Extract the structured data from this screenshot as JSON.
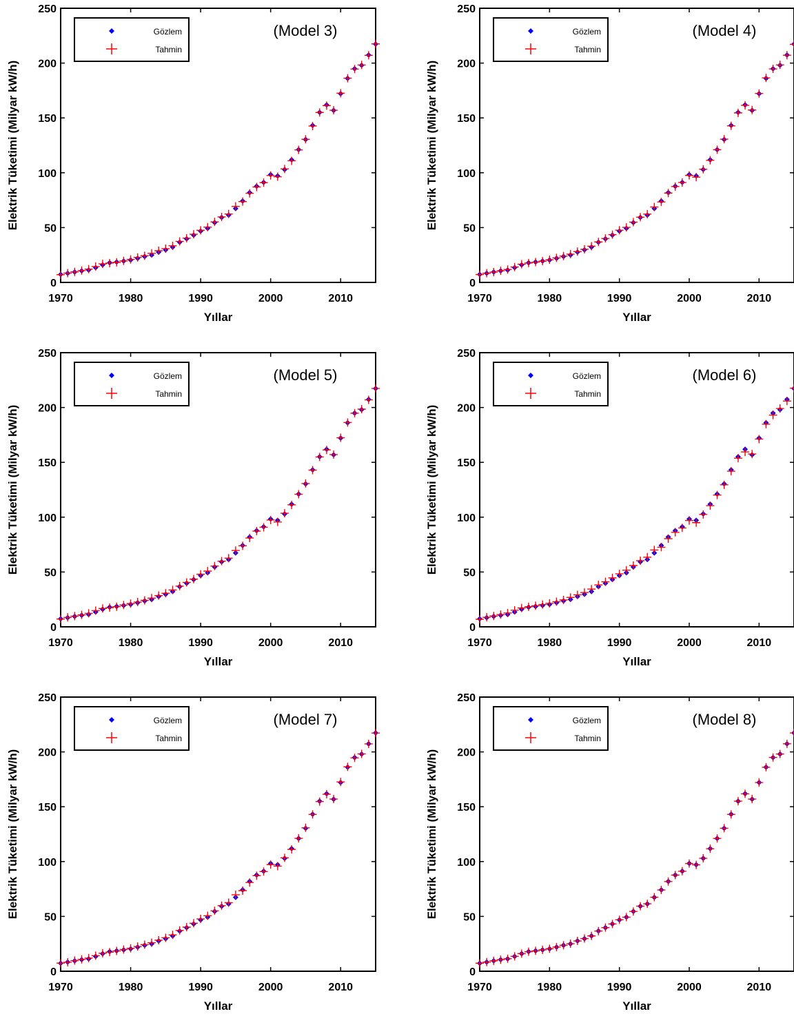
{
  "figure": {
    "xlabel": "Yıllar",
    "ylabel": "Elektrik Tüketimi (Milyar kW/h)"
  },
  "legend": {
    "observed": "Gözlem",
    "predicted": "Tahmin"
  },
  "colors": {
    "observed": "#0000ff",
    "predicted": "#ff0000",
    "axis": "#000000"
  },
  "chart_data": [
    {
      "type": "scatter",
      "annotation": "(Model 3)",
      "xlabel": "Yıllar",
      "ylabel": "Elektrik Tüketimi (Milyar kW/h)",
      "xlim": [
        1970,
        2015
      ],
      "ylim": [
        0,
        250
      ],
      "xticks": [
        1970,
        1980,
        1990,
        2000,
        2010
      ],
      "yticks": [
        0,
        50,
        100,
        150,
        200,
        250
      ],
      "legend_position": "top-left",
      "x": [
        1970,
        1971,
        1972,
        1973,
        1974,
        1975,
        1976,
        1977,
        1978,
        1979,
        1980,
        1981,
        1982,
        1983,
        1984,
        1985,
        1986,
        1987,
        1988,
        1989,
        1990,
        1991,
        1992,
        1993,
        1994,
        1995,
        1996,
        1997,
        1998,
        1999,
        2000,
        2001,
        2002,
        2003,
        2004,
        2005,
        2006,
        2007,
        2008,
        2009,
        2010,
        2011,
        2012,
        2013,
        2014,
        2015
      ],
      "series": [
        {
          "name": "Gözlem",
          "values": [
            7.3,
            8.3,
            9.5,
            10.5,
            11.3,
            13.5,
            16.0,
            17.9,
            18.6,
            19.5,
            20.4,
            22.0,
            23.6,
            25.0,
            27.6,
            29.7,
            32.2,
            36.7,
            39.7,
            43.1,
            46.8,
            49.3,
            54.6,
            59.3,
            61.4,
            67.4,
            74.2,
            81.9,
            87.7,
            91.2,
            98.3,
            97.1,
            102.9,
            111.8,
            121.1,
            130.3,
            143.1,
            155.1,
            161.9,
            156.9,
            172.1,
            186.1,
            194.9,
            198.0,
            207.4,
            217.3
          ]
        },
        {
          "name": "Tahmin",
          "values": [
            7.0,
            8.5,
            9.6,
            10.8,
            12.1,
            14.5,
            16.9,
            17.6,
            18.3,
            19.6,
            21.0,
            22.8,
            24.3,
            26.5,
            28.9,
            30.8,
            33.4,
            37.4,
            40.3,
            43.9,
            47.5,
            50.4,
            55.2,
            59.7,
            62.4,
            69.3,
            73.7,
            81.3,
            87.0,
            91.0,
            97.5,
            96.4,
            103.5,
            110.9,
            120.8,
            130.5,
            142.6,
            155.0,
            161.2,
            157.0,
            172.5,
            186.2,
            194.6,
            198.3,
            207.1,
            217.5
          ]
        }
      ]
    },
    {
      "type": "scatter",
      "annotation": "(Model 4)",
      "xlabel": "Yıllar",
      "ylabel": "Elektrik Tüketimi (Milyar kW/h)",
      "xlim": [
        1970,
        2015
      ],
      "ylim": [
        0,
        250
      ],
      "xticks": [
        1970,
        1980,
        1990,
        2000,
        2010
      ],
      "yticks": [
        0,
        50,
        100,
        150,
        200,
        250
      ],
      "legend_position": "top-left",
      "x": [
        1970,
        1971,
        1972,
        1973,
        1974,
        1975,
        1976,
        1977,
        1978,
        1979,
        1980,
        1981,
        1982,
        1983,
        1984,
        1985,
        1986,
        1987,
        1988,
        1989,
        1990,
        1991,
        1992,
        1993,
        1994,
        1995,
        1996,
        1997,
        1998,
        1999,
        2000,
        2001,
        2002,
        2003,
        2004,
        2005,
        2006,
        2007,
        2008,
        2009,
        2010,
        2011,
        2012,
        2013,
        2014,
        2015
      ],
      "series": [
        {
          "name": "Gözlem",
          "values": [
            7.3,
            8.3,
            9.5,
            10.5,
            11.3,
            13.5,
            16.0,
            17.9,
            18.6,
            19.5,
            20.4,
            22.0,
            23.6,
            25.0,
            27.6,
            29.7,
            32.2,
            36.7,
            39.7,
            43.1,
            46.8,
            49.3,
            54.6,
            59.3,
            61.4,
            67.4,
            74.2,
            81.9,
            87.7,
            91.2,
            98.3,
            97.1,
            102.9,
            111.8,
            121.1,
            130.3,
            143.1,
            155.1,
            161.9,
            156.9,
            172.1,
            186.1,
            194.9,
            198.0,
            207.4,
            217.3
          ]
        },
        {
          "name": "Tahmin",
          "values": [
            7.2,
            8.4,
            9.4,
            10.6,
            11.8,
            14.0,
            16.6,
            17.7,
            18.5,
            19.4,
            20.7,
            22.4,
            24.0,
            25.8,
            28.1,
            30.2,
            33.0,
            36.9,
            40.1,
            43.6,
            47.6,
            50.2,
            55.0,
            59.5,
            62.3,
            68.8,
            73.4,
            81.5,
            87.4,
            91.1,
            97.6,
            96.0,
            103.2,
            111.4,
            121.0,
            130.6,
            142.8,
            154.6,
            161.5,
            157.2,
            172.3,
            186.5,
            194.7,
            198.4,
            207.2,
            217.1
          ]
        }
      ]
    },
    {
      "type": "scatter",
      "annotation": "(Model 5)",
      "xlabel": "Yıllar",
      "ylabel": "Elektrik Tüketimi (Milyar kW/h)",
      "xlim": [
        1970,
        2015
      ],
      "ylim": [
        0,
        250
      ],
      "xticks": [
        1970,
        1980,
        1990,
        2000,
        2010
      ],
      "yticks": [
        0,
        50,
        100,
        150,
        200,
        250
      ],
      "legend_position": "top-left",
      "x": [
        1970,
        1971,
        1972,
        1973,
        1974,
        1975,
        1976,
        1977,
        1978,
        1979,
        1980,
        1981,
        1982,
        1983,
        1984,
        1985,
        1986,
        1987,
        1988,
        1989,
        1990,
        1991,
        1992,
        1993,
        1994,
        1995,
        1996,
        1997,
        1998,
        1999,
        2000,
        2001,
        2002,
        2003,
        2004,
        2005,
        2006,
        2007,
        2008,
        2009,
        2010,
        2011,
        2012,
        2013,
        2014,
        2015
      ],
      "series": [
        {
          "name": "Gözlem",
          "values": [
            7.3,
            8.3,
            9.5,
            10.5,
            11.3,
            13.5,
            16.0,
            17.9,
            18.6,
            19.5,
            20.4,
            22.0,
            23.6,
            25.0,
            27.6,
            29.7,
            32.2,
            36.7,
            39.7,
            43.1,
            46.8,
            49.3,
            54.6,
            59.3,
            61.4,
            67.4,
            74.2,
            81.9,
            87.7,
            91.2,
            98.3,
            97.1,
            102.9,
            111.8,
            121.1,
            130.3,
            143.1,
            155.1,
            161.9,
            156.9,
            172.1,
            186.1,
            194.9,
            198.0,
            207.4,
            217.3
          ]
        },
        {
          "name": "Tahmin",
          "values": [
            7.1,
            8.6,
            9.8,
            10.9,
            12.3,
            14.8,
            16.7,
            17.5,
            18.4,
            19.9,
            21.2,
            22.6,
            24.1,
            26.2,
            28.5,
            30.6,
            33.6,
            37.1,
            40.5,
            43.5,
            47.9,
            50.8,
            55.4,
            59.9,
            62.6,
            69.6,
            73.9,
            81.0,
            87.3,
            90.8,
            97.4,
            95.6,
            103.6,
            111.2,
            120.9,
            130.7,
            142.9,
            154.9,
            161.3,
            157.1,
            172.4,
            186.3,
            194.8,
            198.5,
            207.0,
            217.4
          ]
        }
      ]
    },
    {
      "type": "scatter",
      "annotation": "(Model 6)",
      "xlabel": "Yıllar",
      "ylabel": "Elektrik Tüketimi (Milyar kW/h)",
      "xlim": [
        1970,
        2015
      ],
      "ylim": [
        0,
        250
      ],
      "xticks": [
        1970,
        1980,
        1990,
        2000,
        2010
      ],
      "yticks": [
        0,
        50,
        100,
        150,
        200,
        250
      ],
      "legend_position": "top-left",
      "x": [
        1970,
        1971,
        1972,
        1973,
        1974,
        1975,
        1976,
        1977,
        1978,
        1979,
        1980,
        1981,
        1982,
        1983,
        1984,
        1985,
        1986,
        1987,
        1988,
        1989,
        1990,
        1991,
        1992,
        1993,
        1994,
        1995,
        1996,
        1997,
        1998,
        1999,
        2000,
        2001,
        2002,
        2003,
        2004,
        2005,
        2006,
        2007,
        2008,
        2009,
        2010,
        2011,
        2012,
        2013,
        2014,
        2015
      ],
      "series": [
        {
          "name": "Gözlem",
          "values": [
            7.3,
            8.3,
            9.5,
            10.5,
            11.3,
            13.5,
            16.0,
            17.9,
            18.6,
            19.5,
            20.4,
            22.0,
            23.6,
            25.0,
            27.6,
            29.7,
            32.2,
            36.7,
            39.7,
            43.1,
            46.8,
            49.3,
            54.6,
            59.3,
            61.4,
            67.4,
            74.2,
            81.9,
            87.7,
            91.2,
            98.3,
            97.1,
            102.9,
            111.8,
            121.1,
            130.3,
            143.1,
            155.1,
            161.9,
            156.9,
            172.1,
            186.1,
            194.9,
            198.0,
            207.4,
            217.3
          ]
        },
        {
          "name": "Tahmin",
          "values": [
            6.9,
            8.7,
            9.9,
            11.2,
            12.6,
            15.1,
            17.2,
            18.3,
            19.2,
            20.3,
            21.4,
            22.9,
            24.5,
            26.8,
            29.2,
            31.3,
            34.4,
            38.2,
            41.1,
            44.6,
            48.3,
            51.6,
            55.9,
            60.3,
            63.5,
            70.1,
            72.6,
            80.4,
            86.2,
            90.2,
            96.9,
            95.0,
            102.5,
            110.5,
            120.2,
            129.5,
            141.9,
            153.8,
            159.5,
            157.6,
            171.2,
            184.8,
            193.1,
            199.1,
            205.9,
            217.6
          ]
        }
      ]
    },
    {
      "type": "scatter",
      "annotation": "(Model 7)",
      "xlabel": "Yıllar",
      "ylabel": "Elektrik Tüketimi (Milyar kW/h)",
      "xlim": [
        1970,
        2015
      ],
      "ylim": [
        0,
        250
      ],
      "xticks": [
        1970,
        1980,
        1990,
        2000,
        2010
      ],
      "yticks": [
        0,
        50,
        100,
        150,
        200,
        250
      ],
      "legend_position": "top-left",
      "x": [
        1970,
        1971,
        1972,
        1973,
        1974,
        1975,
        1976,
        1977,
        1978,
        1979,
        1980,
        1981,
        1982,
        1983,
        1984,
        1985,
        1986,
        1987,
        1988,
        1989,
        1990,
        1991,
        1992,
        1993,
        1994,
        1995,
        1996,
        1997,
        1998,
        1999,
        2000,
        2001,
        2002,
        2003,
        2004,
        2005,
        2006,
        2007,
        2008,
        2009,
        2010,
        2011,
        2012,
        2013,
        2014,
        2015
      ],
      "series": [
        {
          "name": "Gözlem",
          "values": [
            7.3,
            8.3,
            9.5,
            10.5,
            11.3,
            13.5,
            16.0,
            17.9,
            18.6,
            19.5,
            20.4,
            22.0,
            23.6,
            25.0,
            27.6,
            29.7,
            32.2,
            36.7,
            39.7,
            43.1,
            46.8,
            49.3,
            54.6,
            59.3,
            61.4,
            67.4,
            74.2,
            81.9,
            87.7,
            91.2,
            98.3,
            97.1,
            102.9,
            111.8,
            121.1,
            130.3,
            143.1,
            155.1,
            161.9,
            156.9,
            172.1,
            186.1,
            194.9,
            198.0,
            207.4,
            217.3
          ]
        },
        {
          "name": "Tahmin",
          "values": [
            7.4,
            8.2,
            9.7,
            10.8,
            12.0,
            14.2,
            16.4,
            17.4,
            18.5,
            19.8,
            20.9,
            22.5,
            24.2,
            26.0,
            28.3,
            30.5,
            33.1,
            37.2,
            40.2,
            43.8,
            47.7,
            50.6,
            55.1,
            59.8,
            62.5,
            69.7,
            73.5,
            80.9,
            87.1,
            90.9,
            97.2,
            95.8,
            103.4,
            111.1,
            121.2,
            130.8,
            143.0,
            154.7,
            161.4,
            157.0,
            172.6,
            186.4,
            194.6,
            198.2,
            207.3,
            217.2
          ]
        }
      ]
    },
    {
      "type": "scatter",
      "annotation": "(Model 8)",
      "xlabel": "Yıllar",
      "ylabel": "Elektrik Tüketimi (Milyar kW/h)",
      "xlim": [
        1970,
        2015
      ],
      "ylim": [
        0,
        250
      ],
      "xticks": [
        1970,
        1980,
        1990,
        2000,
        2010
      ],
      "yticks": [
        0,
        50,
        100,
        150,
        200,
        250
      ],
      "legend_position": "top-left",
      "x": [
        1970,
        1971,
        1972,
        1973,
        1974,
        1975,
        1976,
        1977,
        1978,
        1979,
        1980,
        1981,
        1982,
        1983,
        1984,
        1985,
        1986,
        1987,
        1988,
        1989,
        1990,
        1991,
        1992,
        1993,
        1994,
        1995,
        1996,
        1997,
        1998,
        1999,
        2000,
        2001,
        2002,
        2003,
        2004,
        2005,
        2006,
        2007,
        2008,
        2009,
        2010,
        2011,
        2012,
        2013,
        2014,
        2015
      ],
      "series": [
        {
          "name": "Gözlem",
          "values": [
            7.3,
            8.3,
            9.5,
            10.5,
            11.3,
            13.5,
            16.0,
            17.9,
            18.6,
            19.5,
            20.4,
            22.0,
            23.6,
            25.0,
            27.6,
            29.7,
            32.2,
            36.7,
            39.7,
            43.1,
            46.8,
            49.3,
            54.6,
            59.3,
            61.4,
            67.4,
            74.2,
            81.9,
            87.7,
            91.2,
            98.3,
            97.1,
            102.9,
            111.8,
            121.1,
            130.3,
            143.1,
            155.1,
            161.9,
            156.9,
            172.1,
            186.1,
            194.9,
            198.0,
            207.4,
            217.3
          ]
        },
        {
          "name": "Tahmin",
          "values": [
            7.3,
            8.3,
            9.5,
            10.5,
            11.4,
            13.6,
            16.1,
            17.8,
            18.6,
            19.5,
            20.5,
            22.0,
            23.7,
            25.1,
            27.6,
            29.8,
            32.2,
            36.6,
            39.8,
            43.1,
            46.9,
            49.3,
            54.5,
            59.3,
            61.5,
            67.5,
            74.1,
            81.8,
            87.7,
            91.2,
            98.2,
            97.0,
            103.0,
            111.7,
            121.1,
            130.4,
            143.0,
            155.1,
            161.8,
            157.0,
            172.1,
            186.0,
            194.9,
            198.1,
            207.4,
            217.3
          ]
        }
      ]
    }
  ]
}
